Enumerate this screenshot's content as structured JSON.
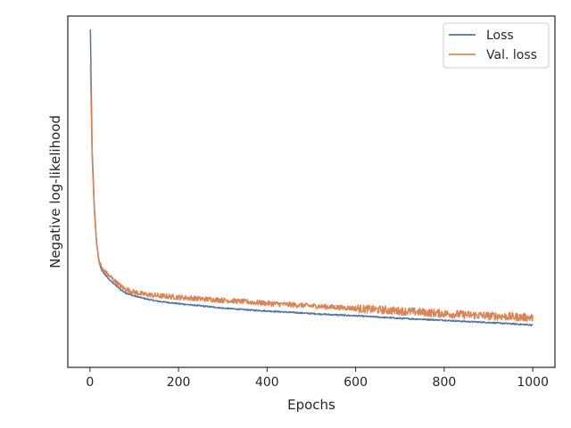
{
  "chart_data": {
    "type": "line",
    "title": "",
    "xlabel": "Epochs",
    "ylabel": "Negative log-likelihood",
    "xlim": [
      -50,
      1050
    ],
    "xticks": [
      0,
      200,
      400,
      600,
      800,
      1000
    ],
    "y_tick_labels_shown": false,
    "grid": false,
    "legend_position": "top-right",
    "series": [
      {
        "name": "Loss",
        "color": "#4c72b0",
        "points": [
          [
            1,
            1.0
          ],
          [
            5,
            0.62
          ],
          [
            10,
            0.44
          ],
          [
            15,
            0.33
          ],
          [
            20,
            0.275
          ],
          [
            25,
            0.25
          ],
          [
            30,
            0.238
          ],
          [
            40,
            0.222
          ],
          [
            50,
            0.208
          ],
          [
            60,
            0.196
          ],
          [
            70,
            0.184
          ],
          [
            80,
            0.175
          ],
          [
            100,
            0.165
          ],
          [
            120,
            0.158
          ],
          [
            150,
            0.149
          ],
          [
            200,
            0.141
          ],
          [
            250,
            0.134
          ],
          [
            300,
            0.127
          ],
          [
            350,
            0.122
          ],
          [
            400,
            0.118
          ],
          [
            450,
            0.114
          ],
          [
            500,
            0.11
          ],
          [
            550,
            0.106
          ],
          [
            600,
            0.103
          ],
          [
            650,
            0.099
          ],
          [
            700,
            0.095
          ],
          [
            750,
            0.092
          ],
          [
            800,
            0.089
          ],
          [
            850,
            0.085
          ],
          [
            900,
            0.082
          ],
          [
            950,
            0.078
          ],
          [
            1000,
            0.074
          ]
        ],
        "noise": 0.002
      },
      {
        "name": "Val. loss",
        "color": "#dd8452",
        "points": [
          [
            1,
            0.89
          ],
          [
            5,
            0.6
          ],
          [
            10,
            0.43
          ],
          [
            15,
            0.33
          ],
          [
            20,
            0.28
          ],
          [
            25,
            0.258
          ],
          [
            30,
            0.246
          ],
          [
            40,
            0.232
          ],
          [
            50,
            0.22
          ],
          [
            60,
            0.207
          ],
          [
            70,
            0.195
          ],
          [
            80,
            0.186
          ],
          [
            100,
            0.177
          ],
          [
            120,
            0.171
          ],
          [
            150,
            0.166
          ],
          [
            200,
            0.161
          ],
          [
            250,
            0.156
          ],
          [
            300,
            0.152
          ],
          [
            350,
            0.147
          ],
          [
            400,
            0.142
          ],
          [
            450,
            0.138
          ],
          [
            500,
            0.134
          ],
          [
            550,
            0.13
          ],
          [
            600,
            0.126
          ],
          [
            650,
            0.122
          ],
          [
            700,
            0.118
          ],
          [
            750,
            0.114
          ],
          [
            800,
            0.11
          ],
          [
            850,
            0.106
          ],
          [
            900,
            0.103
          ],
          [
            950,
            0.1
          ],
          [
            1000,
            0.097
          ]
        ],
        "noise": 0.008
      }
    ]
  }
}
